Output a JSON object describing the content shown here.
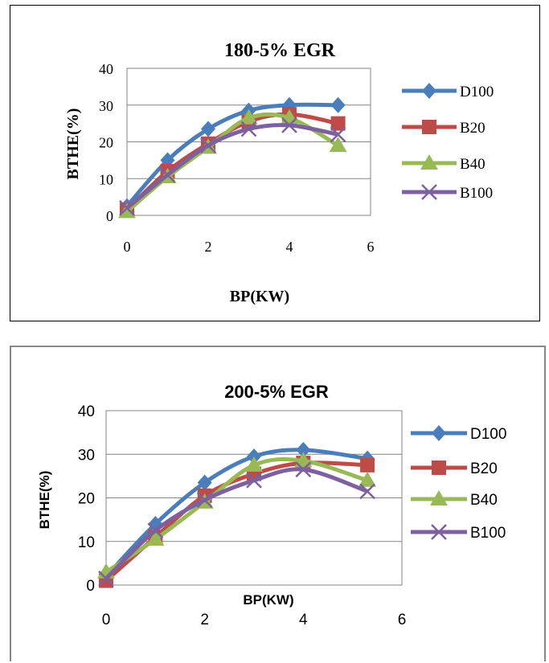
{
  "chart_data": [
    {
      "type": "line",
      "title": "180-5% EGR",
      "xlabel": "BP(KW)",
      "ylabel": "BTHE(%)",
      "xlim": [
        0,
        6
      ],
      "ylim": [
        0,
        40
      ],
      "x_ticks": [
        "0",
        "2",
        "4",
        "6"
      ],
      "y_ticks": [
        "0",
        "10",
        "20",
        "30",
        "40"
      ],
      "grid": "horizontal",
      "legend_position": "right",
      "series": [
        {
          "name": "D100",
          "color": "#4a7ebb",
          "marker": "diamond",
          "x": [
            0,
            1,
            2,
            3,
            4,
            5.2
          ],
          "values": [
            2.5,
            15,
            23.5,
            28.5,
            30,
            30
          ]
        },
        {
          "name": "B20",
          "color": "#be4b48",
          "marker": "square",
          "x": [
            0,
            1,
            2,
            3,
            4,
            5.2
          ],
          "values": [
            1.5,
            12,
            19.5,
            25.5,
            27.5,
            25
          ]
        },
        {
          "name": "B40",
          "color": "#98b954",
          "marker": "triangle",
          "x": [
            0,
            1,
            2,
            3,
            4,
            5.2
          ],
          "values": [
            1,
            10.5,
            18.5,
            26.5,
            26.5,
            19
          ]
        },
        {
          "name": "B100",
          "color": "#7d60a0",
          "marker": "x",
          "x": [
            0,
            1,
            2,
            3,
            4,
            5.2
          ],
          "values": [
            2,
            11,
            19,
            23.5,
            24.5,
            22
          ]
        }
      ]
    },
    {
      "type": "line",
      "title": "200-5% EGR",
      "xlabel": "BP(KW)",
      "ylabel": "BTHE(%)",
      "xlim": [
        0,
        6
      ],
      "ylim": [
        0,
        40
      ],
      "x_ticks": [
        "0",
        "2",
        "4",
        "6"
      ],
      "y_ticks": [
        "0",
        "10",
        "20",
        "30",
        "40"
      ],
      "grid": "horizontal",
      "legend_position": "right",
      "series": [
        {
          "name": "D100",
          "color": "#4a7ebb",
          "marker": "diamond",
          "x": [
            0,
            1,
            2,
            3,
            4,
            5.3
          ],
          "values": [
            2,
            14,
            23.5,
            29.5,
            31,
            29
          ]
        },
        {
          "name": "B20",
          "color": "#be4b48",
          "marker": "square",
          "x": [
            0,
            1,
            2,
            3,
            4,
            5.3
          ],
          "values": [
            1,
            11,
            20.5,
            25.5,
            28,
            27.5
          ]
        },
        {
          "name": "B40",
          "color": "#98b954",
          "marker": "triangle",
          "x": [
            0,
            1,
            2,
            3,
            4,
            5.3
          ],
          "values": [
            3,
            10.5,
            19,
            27.5,
            28.5,
            24
          ]
        },
        {
          "name": "B100",
          "color": "#7d60a0",
          "marker": "x",
          "x": [
            0,
            1,
            2,
            3,
            4,
            5.3
          ],
          "values": [
            1.5,
            12.5,
            19.5,
            24,
            26.5,
            21.5
          ]
        }
      ]
    }
  ]
}
